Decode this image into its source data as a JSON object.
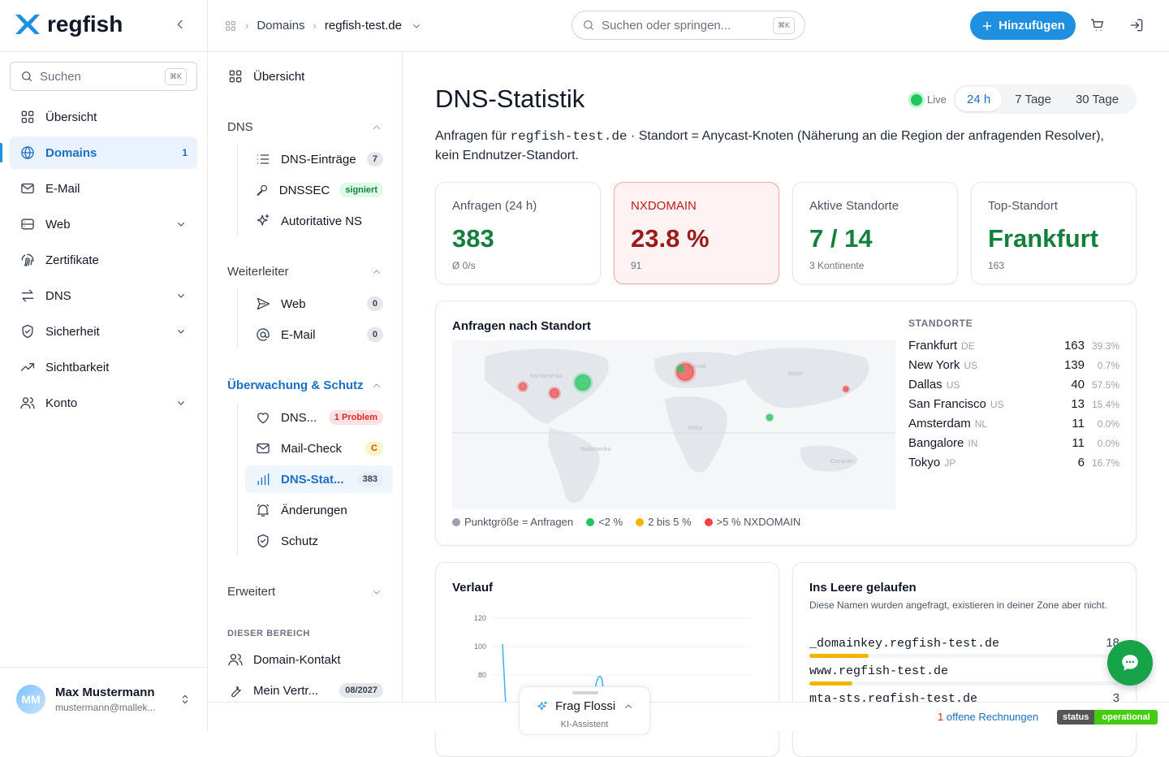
{
  "brand": {
    "name": "regfish",
    "accent": "#1f8fe0",
    "success": "#15803d",
    "danger": "#dc2626"
  },
  "header": {
    "breadcrumb": [
      "Domains",
      "regfish-test.de"
    ],
    "search_placeholder": "Suchen oder springen...",
    "search_kbd": "⌘K",
    "add_label": "Hinzufügen"
  },
  "sidebar": {
    "search_placeholder": "Suchen",
    "search_kbd": "⌘K",
    "items": [
      {
        "label": "Übersicht",
        "icon": "grid-icon"
      },
      {
        "label": "Domains",
        "icon": "globe-icon",
        "count": "1",
        "active": true
      },
      {
        "label": "E-Mail",
        "icon": "mail-icon"
      },
      {
        "label": "Web",
        "icon": "server-icon",
        "chevron": true
      },
      {
        "label": "Zertifikate",
        "icon": "fingerprint-icon"
      },
      {
        "label": "DNS",
        "icon": "arrows-icon",
        "chevron": true
      },
      {
        "label": "Sicherheit",
        "icon": "shield-icon",
        "chevron": true
      },
      {
        "label": "Sichtbarkeit",
        "icon": "trend-icon"
      },
      {
        "label": "Konto",
        "icon": "users-icon",
        "chevron": true
      }
    ],
    "user": {
      "initials": "MM",
      "name": "Max Mustermann",
      "email": "mustermann@mallek..."
    }
  },
  "subnav": {
    "overview": "Übersicht",
    "dns": {
      "title": "DNS",
      "items": [
        {
          "label": "DNS-Einträge",
          "badge": "7"
        },
        {
          "label": "DNSSEC",
          "badge": "signiert"
        },
        {
          "label": "Autoritative NS"
        }
      ]
    },
    "forward": {
      "title": "Weiterleiter",
      "items": [
        {
          "label": "Web",
          "badge": "0"
        },
        {
          "label": "E-Mail",
          "badge": "0"
        }
      ]
    },
    "monitor": {
      "title": "Überwachung & Schutz",
      "items": [
        {
          "label": "DNS...",
          "badge": "1 Problem"
        },
        {
          "label": "Mail-Check",
          "badge": "C"
        },
        {
          "label": "DNS-Stat...",
          "badge": "383"
        },
        {
          "label": "Änderungen"
        },
        {
          "label": "Schutz"
        }
      ]
    },
    "advanced": "Erweitert",
    "area_label": "DIESER BEREICH",
    "area_items": [
      {
        "label": "Domain-Kontakt"
      },
      {
        "label": "Mein Vertr...",
        "badge": "08/2027"
      }
    ]
  },
  "main": {
    "title": "DNS-Statistik",
    "live": "Live",
    "ranges": [
      "24 h",
      "7 Tage",
      "30 Tage"
    ],
    "desc_prefix": "Anfragen für ",
    "desc_domain": "regfish-test.de",
    "desc_suffix": " · Standort = Anycast-Knoten (Näherung an die Region der anfragenden Resolver), kein Endnutzer-Standort.",
    "kpis": [
      {
        "label": "Anfragen (24 h)",
        "value": "383",
        "sub": "Ø 0/s"
      },
      {
        "label": "NXDOMAIN",
        "value": "23.8 %",
        "sub": "91"
      },
      {
        "label": "Aktive Standorte",
        "value": "7 / 14",
        "sub": "3 Kontinente"
      },
      {
        "label": "Top-Standort",
        "value": "Frankfurt",
        "sub": "163"
      }
    ],
    "map_card": {
      "title": "Anfragen nach Standort",
      "continents": [
        "Nordamerika",
        "Europa",
        "Asien",
        "Afrika",
        "Südamerika",
        "Ozeanien"
      ],
      "list_title": "STANDORTE",
      "locations": [
        {
          "city": "Frankfurt",
          "cc": "DE",
          "count": "163",
          "pct": "39.3%"
        },
        {
          "city": "New York",
          "cc": "US",
          "count": "139",
          "pct": "0.7%"
        },
        {
          "city": "Dallas",
          "cc": "US",
          "count": "40",
          "pct": "57.5%"
        },
        {
          "city": "San Francisco",
          "cc": "US",
          "count": "13",
          "pct": "15.4%"
        },
        {
          "city": "Amsterdam",
          "cc": "NL",
          "count": "11",
          "pct": "0.0%"
        },
        {
          "city": "Bangalore",
          "cc": "IN",
          "count": "11",
          "pct": "0.0%"
        },
        {
          "city": "Tokyo",
          "cc": "JP",
          "count": "6",
          "pct": "16.7%"
        }
      ],
      "legend": [
        {
          "label": "Punktgröße = Anfragen",
          "color": "#9ca3af"
        },
        {
          "label": "<2 %",
          "color": "#22c55e"
        },
        {
          "label": "2 bis 5 %",
          "color": "#f5b301"
        },
        {
          "label": ">5 % NXDOMAIN",
          "color": "#ef4444"
        }
      ]
    },
    "verlauf": {
      "title": "Verlauf",
      "y_ticks": [
        "120",
        "100",
        "80"
      ]
    },
    "nx": {
      "title": "Ins Leere gelaufen",
      "desc": "Diese Namen wurden angefragt, existieren in deiner Zone aber nicht.",
      "rows": [
        {
          "name": "_domainkey.regfish-test.de",
          "value": "18",
          "share": 0.19
        },
        {
          "name": "www.regfish-test.de",
          "value": "1",
          "share": 0.14
        },
        {
          "name": "mta-sts.regfish-test.de",
          "value": "3",
          "share": 0.15
        }
      ]
    }
  },
  "footer": {
    "flossi_title": "Frag Flossi",
    "flossi_sub": "KI-Assistent",
    "invoices_count": "1",
    "invoices_text": " offene Rechnungen",
    "status_a": "status",
    "status_b": "operational"
  }
}
